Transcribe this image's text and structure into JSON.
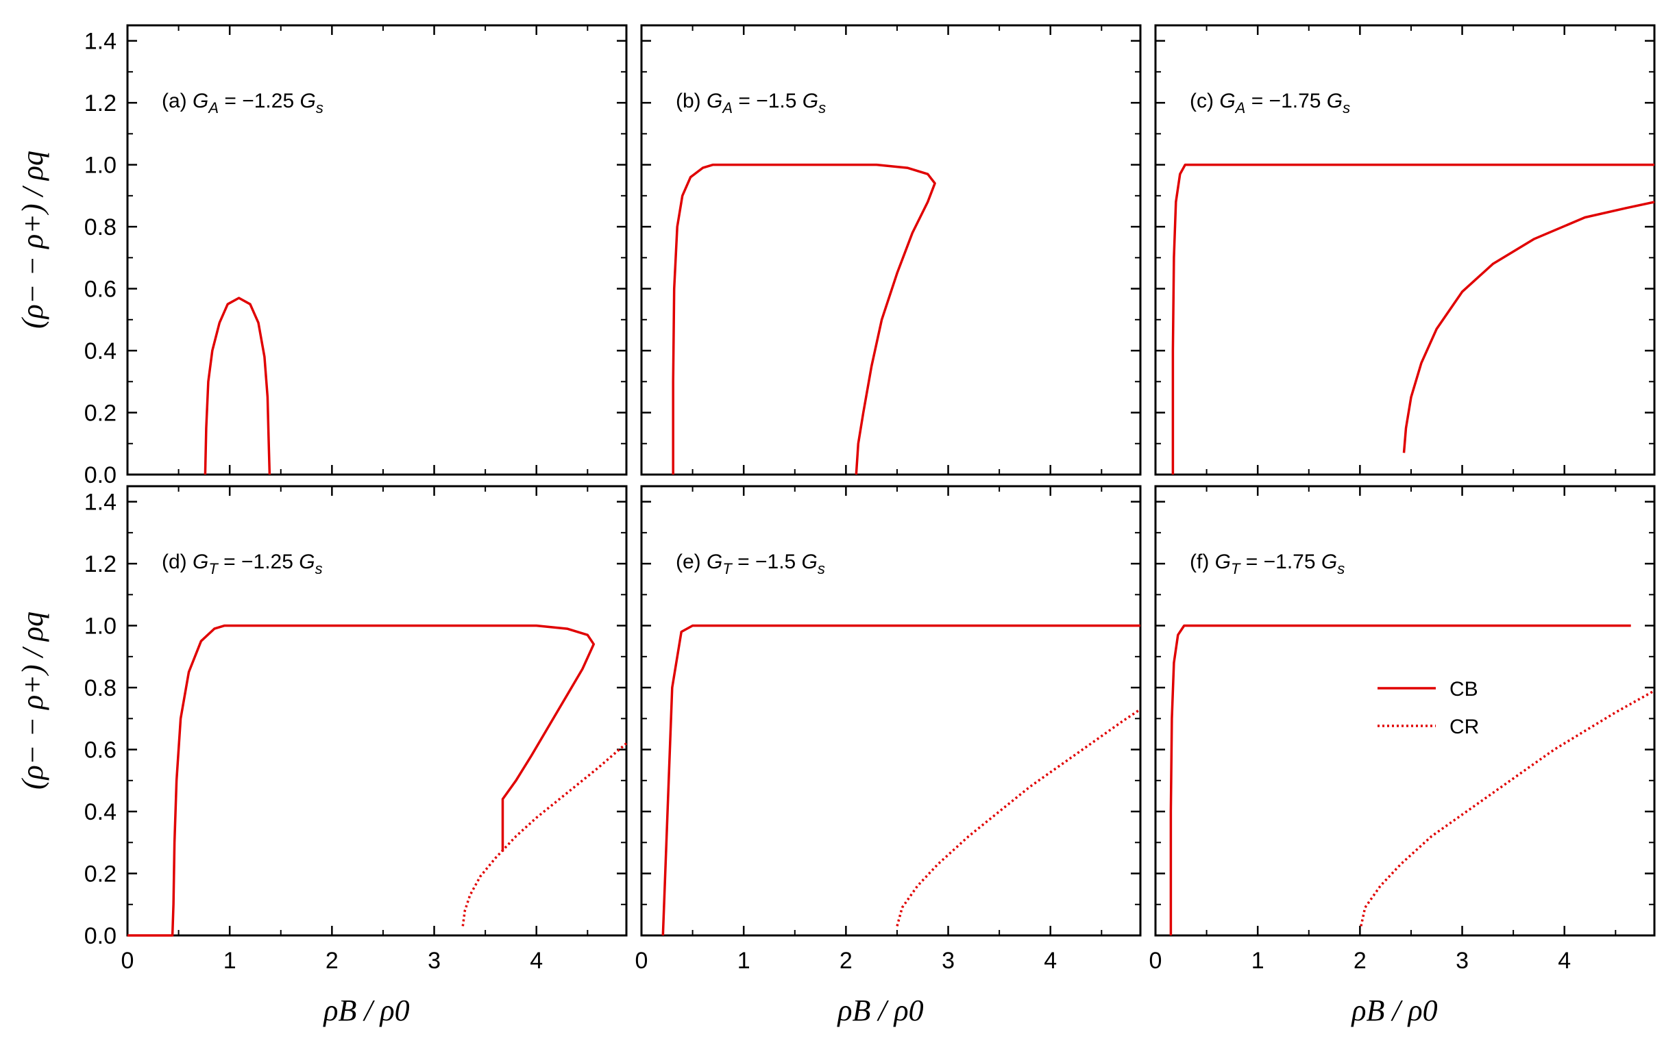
{
  "colors": {
    "curve": "#e00000",
    "axes": "#000000"
  },
  "axis_titles": {
    "x": "ρB / ρ0",
    "y": "(ρ− − ρ+) / ρq"
  },
  "legend": [
    {
      "label": "CB",
      "style": "solid"
    },
    {
      "label": "CR",
      "style": "dotted"
    }
  ],
  "chart_data": [
    {
      "type": "line",
      "panel": "(a)",
      "coupling": "GA",
      "value": "−1.25",
      "xlim": [
        0,
        4.88
      ],
      "ylim": [
        0,
        1.45
      ],
      "xticks": [
        0,
        1,
        2,
        3,
        4
      ],
      "yticks": [
        0.0,
        0.2,
        0.4,
        0.6,
        0.8,
        1.0,
        1.2,
        1.4
      ],
      "series": [
        {
          "label": "CB",
          "style": "solid",
          "points": [
            [
              0.76,
              0.0
            ],
            [
              0.77,
              0.15
            ],
            [
              0.79,
              0.3
            ],
            [
              0.83,
              0.4
            ],
            [
              0.9,
              0.49
            ],
            [
              0.98,
              0.55
            ],
            [
              1.09,
              0.57
            ],
            [
              1.2,
              0.55
            ],
            [
              1.28,
              0.49
            ],
            [
              1.34,
              0.38
            ],
            [
              1.37,
              0.25
            ],
            [
              1.38,
              0.12
            ],
            [
              1.39,
              0.0
            ]
          ]
        }
      ]
    },
    {
      "type": "line",
      "panel": "(b)",
      "coupling": "GA",
      "value": "−1.5",
      "xlim": [
        0,
        4.88
      ],
      "ylim": [
        0,
        1.45
      ],
      "xticks": [
        0,
        1,
        2,
        3,
        4
      ],
      "yticks": [
        0.0,
        0.2,
        0.4,
        0.6,
        0.8,
        1.0,
        1.2,
        1.4
      ],
      "series": [
        {
          "label": "CB",
          "style": "solid",
          "points": [
            [
              0.31,
              0.0
            ],
            [
              0.31,
              0.3
            ],
            [
              0.32,
              0.6
            ],
            [
              0.35,
              0.8
            ],
            [
              0.4,
              0.9
            ],
            [
              0.48,
              0.96
            ],
            [
              0.6,
              0.99
            ],
            [
              0.7,
              1.0
            ],
            [
              2.3,
              1.0
            ],
            [
              2.6,
              0.99
            ],
            [
              2.8,
              0.97
            ],
            [
              2.87,
              0.94
            ],
            [
              2.8,
              0.88
            ],
            [
              2.65,
              0.78
            ],
            [
              2.5,
              0.65
            ],
            [
              2.35,
              0.5
            ],
            [
              2.25,
              0.35
            ],
            [
              2.17,
              0.2
            ],
            [
              2.12,
              0.1
            ],
            [
              2.1,
              0.0
            ]
          ]
        }
      ]
    },
    {
      "type": "line",
      "panel": "(c)",
      "coupling": "GA",
      "value": "−1.75",
      "xlim": [
        0,
        4.88
      ],
      "ylim": [
        0,
        1.45
      ],
      "xticks": [
        0,
        1,
        2,
        3,
        4
      ],
      "yticks": [
        0.0,
        0.2,
        0.4,
        0.6,
        0.8,
        1.0,
        1.2,
        1.4
      ],
      "series": [
        {
          "label": "CB",
          "style": "solid",
          "points": [
            [
              0.17,
              0.0
            ],
            [
              0.17,
              0.4
            ],
            [
              0.18,
              0.7
            ],
            [
              0.2,
              0.88
            ],
            [
              0.24,
              0.97
            ],
            [
              0.29,
              1.0
            ],
            [
              4.88,
              1.0
            ]
          ]
        },
        {
          "label": "CB",
          "style": "solid",
          "points": [
            [
              2.43,
              0.07
            ],
            [
              2.45,
              0.15
            ],
            [
              2.5,
              0.25
            ],
            [
              2.6,
              0.36
            ],
            [
              2.75,
              0.47
            ],
            [
              3.0,
              0.59
            ],
            [
              3.3,
              0.68
            ],
            [
              3.7,
              0.76
            ],
            [
              4.2,
              0.83
            ],
            [
              4.6,
              0.86
            ],
            [
              4.88,
              0.88
            ]
          ]
        }
      ]
    },
    {
      "type": "line",
      "panel": "(d)",
      "coupling": "GT",
      "value": "−1.25",
      "xlim": [
        0,
        4.88
      ],
      "ylim": [
        0,
        1.45
      ],
      "xticks": [
        0,
        1,
        2,
        3,
        4
      ],
      "yticks": [
        0.0,
        0.2,
        0.4,
        0.6,
        0.8,
        1.0,
        1.2,
        1.4
      ],
      "series": [
        {
          "label": "CB",
          "style": "solid",
          "points": [
            [
              0.0,
              0.0
            ],
            [
              0.44,
              0.0
            ],
            [
              0.45,
              0.1
            ],
            [
              0.46,
              0.3
            ],
            [
              0.48,
              0.5
            ],
            [
              0.52,
              0.7
            ],
            [
              0.6,
              0.85
            ],
            [
              0.72,
              0.95
            ],
            [
              0.85,
              0.99
            ],
            [
              0.95,
              1.0
            ],
            [
              4.0,
              1.0
            ],
            [
              4.3,
              0.99
            ],
            [
              4.5,
              0.97
            ],
            [
              4.56,
              0.94
            ],
            [
              4.45,
              0.86
            ],
            [
              4.2,
              0.72
            ],
            [
              3.95,
              0.58
            ],
            [
              3.8,
              0.5
            ],
            [
              3.67,
              0.44
            ],
            [
              3.67,
              0.27
            ]
          ]
        },
        {
          "label": "CR",
          "style": "dotted",
          "points": [
            [
              3.28,
              0.03
            ],
            [
              3.3,
              0.08
            ],
            [
              3.35,
              0.13
            ],
            [
              3.45,
              0.19
            ],
            [
              3.6,
              0.25
            ],
            [
              3.8,
              0.32
            ],
            [
              4.0,
              0.38
            ],
            [
              4.3,
              0.46
            ],
            [
              4.6,
              0.54
            ],
            [
              4.88,
              0.62
            ]
          ]
        }
      ]
    },
    {
      "type": "line",
      "panel": "(e)",
      "coupling": "GT",
      "value": "−1.5",
      "xlim": [
        0,
        4.88
      ],
      "ylim": [
        0,
        1.45
      ],
      "xticks": [
        0,
        1,
        2,
        3,
        4
      ],
      "yticks": [
        0.0,
        0.2,
        0.4,
        0.6,
        0.8,
        1.0,
        1.2,
        1.4
      ],
      "series": [
        {
          "label": "CB",
          "style": "solid",
          "points": [
            [
              0.21,
              0.0
            ],
            [
              0.3,
              0.8
            ],
            [
              0.39,
              0.98
            ],
            [
              0.5,
              1.0
            ],
            [
              4.88,
              1.0
            ]
          ]
        },
        {
          "label": "CR",
          "style": "dotted",
          "points": [
            [
              2.5,
              0.03
            ],
            [
              2.55,
              0.09
            ],
            [
              2.7,
              0.16
            ],
            [
              2.9,
              0.23
            ],
            [
              3.2,
              0.32
            ],
            [
              3.5,
              0.4
            ],
            [
              3.8,
              0.48
            ],
            [
              4.1,
              0.55
            ],
            [
              4.4,
              0.62
            ],
            [
              4.7,
              0.69
            ],
            [
              4.88,
              0.73
            ]
          ]
        }
      ]
    },
    {
      "type": "line",
      "panel": "(f)",
      "coupling": "GT",
      "value": "−1.75",
      "xlim": [
        0,
        4.88
      ],
      "ylim": [
        0,
        1.45
      ],
      "xticks": [
        0,
        1,
        2,
        3,
        4
      ],
      "yticks": [
        0.0,
        0.2,
        0.4,
        0.6,
        0.8,
        1.0,
        1.2,
        1.4
      ],
      "series": [
        {
          "label": "CB",
          "style": "solid",
          "points": [
            [
              0.15,
              0.0
            ],
            [
              0.15,
              0.4
            ],
            [
              0.16,
              0.7
            ],
            [
              0.18,
              0.88
            ],
            [
              0.22,
              0.97
            ],
            [
              0.28,
              1.0
            ],
            [
              4.65,
              1.0
            ]
          ]
        },
        {
          "label": "CR",
          "style": "dotted",
          "points": [
            [
              2.01,
              0.03
            ],
            [
              2.05,
              0.09
            ],
            [
              2.2,
              0.16
            ],
            [
              2.4,
              0.23
            ],
            [
              2.7,
              0.32
            ],
            [
              3.0,
              0.39
            ],
            [
              3.3,
              0.46
            ],
            [
              3.6,
              0.53
            ],
            [
              3.9,
              0.6
            ],
            [
              4.2,
              0.66
            ],
            [
              4.5,
              0.72
            ],
            [
              4.88,
              0.79
            ]
          ]
        }
      ]
    }
  ]
}
